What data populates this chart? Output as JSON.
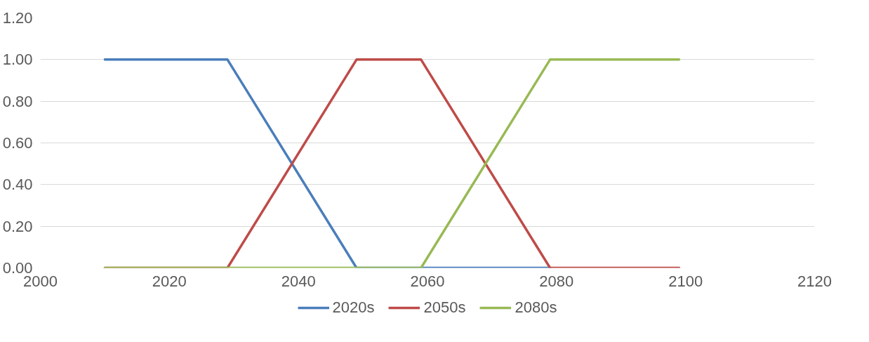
{
  "chart_data": {
    "type": "line",
    "series": [
      {
        "name": "2020s",
        "color": "#4a7ebb",
        "x": [
          2010,
          2029,
          2049,
          2079
        ],
        "values": [
          1,
          1,
          0,
          0
        ]
      },
      {
        "name": "2050s",
        "color": "#be4b48",
        "x": [
          2010,
          2029,
          2049,
          2059,
          2079,
          2099
        ],
        "values": [
          0,
          0,
          1,
          1,
          0,
          0
        ]
      },
      {
        "name": "2080s",
        "color": "#98b954",
        "x": [
          2010,
          2059,
          2079,
          2099
        ],
        "values": [
          0,
          0,
          1,
          1
        ]
      }
    ],
    "xlim": [
      2000,
      2120
    ],
    "xticks": [
      2000,
      2020,
      2040,
      2060,
      2080,
      2100,
      2120
    ],
    "ylim": [
      0,
      1.2
    ],
    "yticks": [
      {
        "value": 0,
        "label": "0.00"
      },
      {
        "value": 0.2,
        "label": "0.20"
      },
      {
        "value": 0.4,
        "label": "0.40"
      },
      {
        "value": 0.6,
        "label": "0.60"
      },
      {
        "value": 0.8,
        "label": "0.80"
      },
      {
        "value": 1.0,
        "label": "1.00"
      },
      {
        "value": 1.2,
        "label": "1.20"
      }
    ],
    "grid": "y",
    "legend": "bottom",
    "marker": "none",
    "line_style": "solid"
  }
}
